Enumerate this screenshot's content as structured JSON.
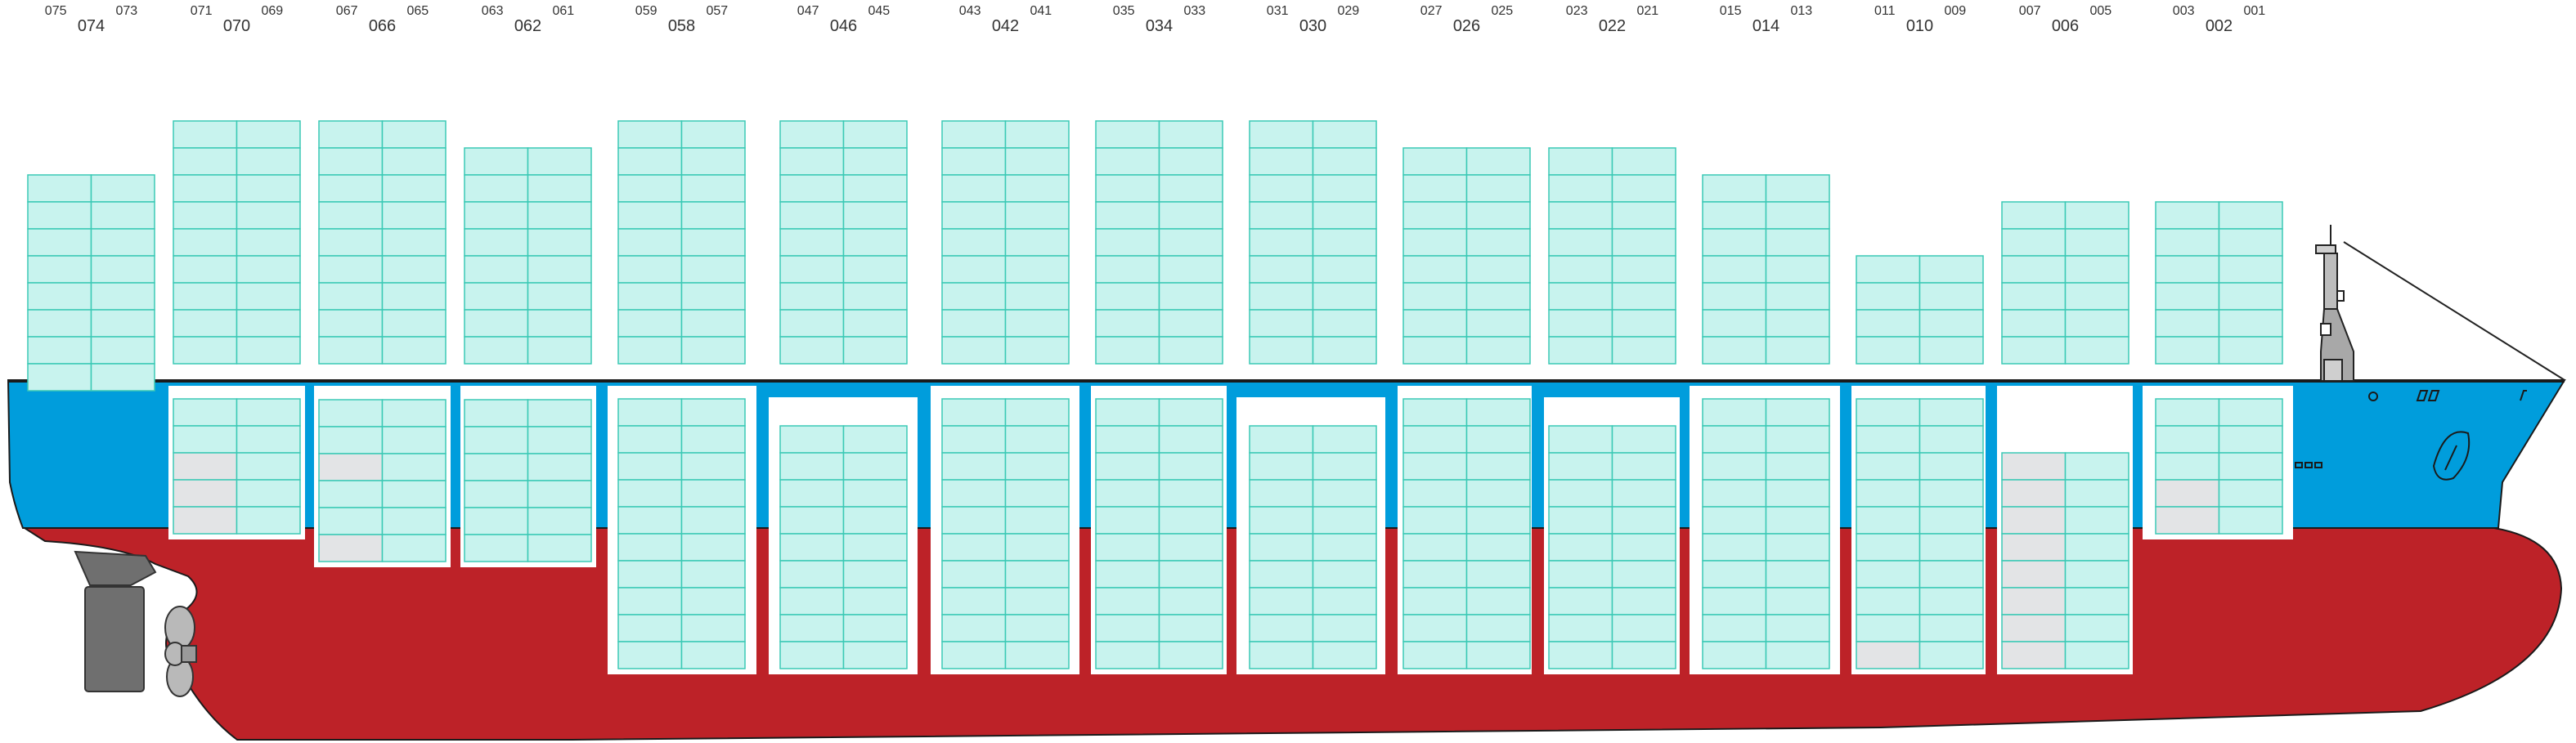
{
  "colors": {
    "hull_red": "#bd2228",
    "hull_blue": "#009ddc",
    "container_fill": "#c8f3ee",
    "container_stroke": "#3bc9b5",
    "container_empty": "#e3e4e6",
    "deck_line": "#1a1a1a",
    "rudder": "#6f6f6f",
    "propeller": "#b9b9b9",
    "label_color": "#333333"
  },
  "icons": [
    "rudder-icon",
    "propeller-icon",
    "bridge-mast-icon",
    "anchor-icon",
    "bow-line-icon"
  ],
  "bays": [
    {
      "id": "074",
      "left": "075",
      "right": "073",
      "above_tiers": 8,
      "hold": null
    },
    {
      "id": "070",
      "left": "071",
      "right": "069",
      "above_tiers": 9,
      "hold": {
        "tiers": 5,
        "empty": [
          [
            2,
            0
          ],
          [
            3,
            0
          ],
          [
            4,
            0
          ]
        ]
      }
    },
    {
      "id": "066",
      "left": "067",
      "right": "065",
      "above_tiers": 9,
      "hold": {
        "tiers": 6,
        "empty": [
          [
            2,
            0
          ],
          [
            5,
            0
          ]
        ]
      }
    },
    {
      "id": "062",
      "left": "063",
      "right": "061",
      "above_tiers": 8,
      "hold": {
        "tiers": 6,
        "empty": []
      }
    },
    {
      "id": "058",
      "left": "059",
      "right": "057",
      "above_tiers": 9,
      "hold": {
        "tiers": 10,
        "empty": []
      }
    },
    {
      "id": "046",
      "left": "047",
      "right": "045",
      "above_tiers": 9,
      "hold": {
        "tiers": 9,
        "empty": []
      }
    },
    {
      "id": "042",
      "left": "043",
      "right": "041",
      "above_tiers": 9,
      "hold": {
        "tiers": 10,
        "empty": []
      }
    },
    {
      "id": "034",
      "left": "035",
      "right": "033",
      "above_tiers": 9,
      "hold": {
        "tiers": 10,
        "empty": []
      }
    },
    {
      "id": "030",
      "left": "031",
      "right": "029",
      "above_tiers": 9,
      "hold": {
        "tiers": 9,
        "empty": []
      }
    },
    {
      "id": "026",
      "left": "027",
      "right": "025",
      "above_tiers": 8,
      "hold": {
        "tiers": 10,
        "empty": []
      }
    },
    {
      "id": "022",
      "left": "023",
      "right": "021",
      "above_tiers": 8,
      "hold": {
        "tiers": 9,
        "empty": []
      }
    },
    {
      "id": "014",
      "left": "015",
      "right": "013",
      "above_tiers": 7,
      "hold": {
        "tiers": 10,
        "empty": []
      }
    },
    {
      "id": "010",
      "left": "011",
      "right": "009",
      "above_tiers": 4,
      "hold": {
        "tiers": 10,
        "empty": [
          [
            9,
            0
          ]
        ]
      }
    },
    {
      "id": "006",
      "left": "007",
      "right": "005",
      "above_tiers": 6,
      "hold": {
        "tiers": 8,
        "empty": [
          [
            0,
            0
          ],
          [
            1,
            0
          ],
          [
            2,
            0
          ],
          [
            3,
            0
          ],
          [
            4,
            0
          ],
          [
            5,
            0
          ],
          [
            6,
            0
          ],
          [
            7,
            0
          ]
        ]
      }
    },
    {
      "id": "002",
      "left": "003",
      "right": "001",
      "above_tiers": 6,
      "hold": {
        "tiers": 5,
        "empty": [
          [
            3,
            0
          ],
          [
            4,
            0
          ]
        ]
      }
    }
  ]
}
